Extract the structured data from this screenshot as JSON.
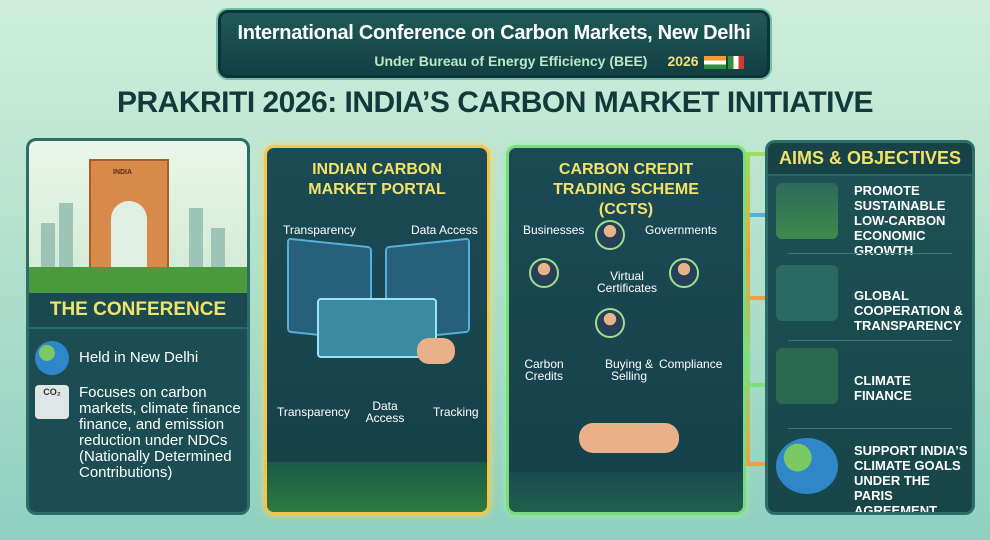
{
  "header": {
    "title": "International Conference on Carbon Markets, New Delhi",
    "subtitle": "Under Bureau of Energy Efficiency (BEE)",
    "year": "2026"
  },
  "main_title": "PRAKRITI 2026: INDIA’S CARBON MARKET INITIATIVE",
  "conference": {
    "gate_label": "INDIA",
    "heading": "THE CONFERENCE",
    "items": [
      {
        "icon": "globe-icon",
        "text": "Held in New Delhi"
      },
      {
        "icon": "co2-factory-icon",
        "text": "Focuses on carbon markets, climate finance finance, and emission reduction under NDCs (Nationally Determined Contributions)"
      }
    ],
    "co2_label": "CO₂"
  },
  "portal": {
    "heading": "INDIAN CARBON MARKET PORTAL",
    "labels": {
      "top_left": "Transparency",
      "top_right": "Data Access",
      "bottom_left": "Transparency",
      "bottom_mid": "Data Access",
      "bottom_right": "Tracking"
    }
  },
  "ccts": {
    "heading": "CARBON CREDIT TRADING SCHEME (CCTS)",
    "labels": {
      "businesses": "Businesses",
      "governments": "Governments",
      "virtual": "Virtual Certificates",
      "carbon_credits": "Carbon Credits",
      "buying": "Buying & Selling",
      "compliance": "Compliance"
    }
  },
  "aims": {
    "heading": "AIMS & OBJECTIVES",
    "items": [
      "PROMOTE SUSTAINABLE LOW-CARBON ECONOMIC GROWTH",
      "GLOBAL COOPERATION & TRANSPARENCY",
      "CLIMATE FINANCE",
      "SUPPORT INDIA’S CLIMATE GOALS UNDER THE PARIS AGREEMENT"
    ]
  },
  "colors": {
    "panel": "#1b4d52",
    "accent_yellow": "#f1e36a",
    "portal_border": "#f1c64a",
    "ccts_border": "#7bdc7d"
  }
}
